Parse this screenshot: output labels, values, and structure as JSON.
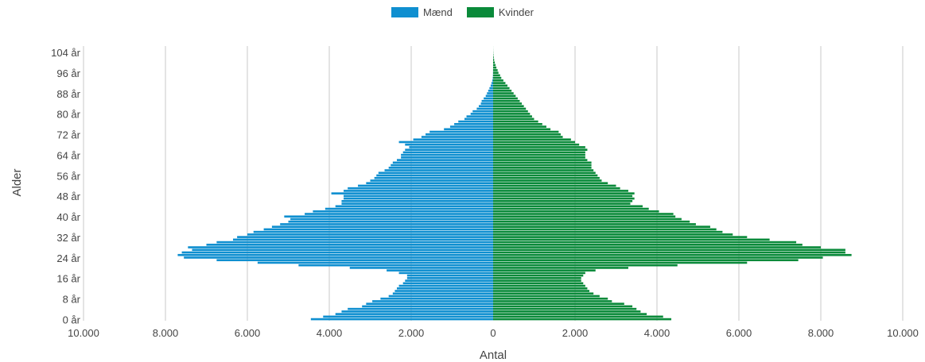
{
  "chart_data": {
    "type": "bar",
    "orientation": "horizontal-pyramid",
    "legend": {
      "position": "top",
      "entries": [
        "Mænd",
        "Kvinder"
      ]
    },
    "series": [
      {
        "name": "Mænd",
        "color": "#0f8fd0",
        "direction": "left"
      },
      {
        "name": "Kvinder",
        "color": "#0a8a3a",
        "direction": "right"
      }
    ],
    "xlabel": "Antal",
    "ylabel": "Alder",
    "xlim": [
      -10000,
      10000
    ],
    "x_ticks": [
      -10000,
      -8000,
      -6000,
      -4000,
      -2000,
      0,
      2000,
      4000,
      6000,
      8000,
      10000
    ],
    "x_tick_labels": [
      "10.000",
      "8.000",
      "6.000",
      "4.000",
      "2.000",
      "0",
      "2.000",
      "4.000",
      "6.000",
      "8.000",
      "10.000"
    ],
    "grid": true,
    "y_tick_labels": [
      {
        "age": 0,
        "label": "0 år"
      },
      {
        "age": 8,
        "label": "8 år"
      },
      {
        "age": 16,
        "label": "16 år"
      },
      {
        "age": 24,
        "label": "24 år"
      },
      {
        "age": 32,
        "label": "32 år"
      },
      {
        "age": 40,
        "label": "40 år"
      },
      {
        "age": 48,
        "label": "48 år"
      },
      {
        "age": 56,
        "label": "56 år"
      },
      {
        "age": 64,
        "label": "64 år"
      },
      {
        "age": 72,
        "label": "72 år"
      },
      {
        "age": 80,
        "label": "80 år"
      },
      {
        "age": 88,
        "label": "88 år"
      },
      {
        "age": 96,
        "label": "96 år"
      },
      {
        "age": 104,
        "label": "104 år"
      }
    ],
    "ages": [
      0,
      1,
      2,
      3,
      4,
      5,
      6,
      7,
      8,
      9,
      10,
      11,
      12,
      13,
      14,
      15,
      16,
      17,
      18,
      19,
      20,
      21,
      22,
      23,
      24,
      25,
      26,
      27,
      28,
      29,
      30,
      31,
      32,
      33,
      34,
      35,
      36,
      37,
      38,
      39,
      40,
      41,
      42,
      43,
      44,
      45,
      46,
      47,
      48,
      49,
      50,
      51,
      52,
      53,
      54,
      55,
      56,
      57,
      58,
      59,
      60,
      61,
      62,
      63,
      64,
      65,
      66,
      67,
      68,
      69,
      70,
      71,
      72,
      73,
      74,
      75,
      76,
      77,
      78,
      79,
      80,
      81,
      82,
      83,
      84,
      85,
      86,
      87,
      88,
      89,
      90,
      91,
      92,
      93,
      94,
      95,
      96,
      97,
      98,
      99,
      100,
      101,
      102,
      103,
      104,
      105,
      106
    ],
    "men": [
      4450,
      4150,
      3850,
      3700,
      3550,
      3200,
      3100,
      2950,
      2750,
      2550,
      2450,
      2400,
      2350,
      2300,
      2200,
      2150,
      2100,
      2100,
      2300,
      2600,
      3500,
      4750,
      5750,
      6750,
      7550,
      7700,
      7600,
      7350,
      7450,
      7000,
      6750,
      6350,
      6250,
      6000,
      5850,
      5600,
      5400,
      5200,
      5000,
      4950,
      5100,
      4600,
      4400,
      4100,
      3850,
      3700,
      3700,
      3650,
      3650,
      3950,
      3650,
      3550,
      3300,
      3100,
      3000,
      2900,
      2850,
      2800,
      2650,
      2550,
      2500,
      2450,
      2350,
      2250,
      2250,
      2200,
      2150,
      2050,
      2150,
      2300,
      1950,
      1750,
      1650,
      1550,
      1200,
      1050,
      950,
      850,
      700,
      650,
      550,
      500,
      400,
      350,
      300,
      280,
      230,
      180,
      150,
      120,
      90,
      60,
      40,
      20,
      10,
      5,
      3,
      2,
      1,
      1,
      0,
      0,
      0,
      0,
      0,
      0,
      0
    ],
    "women": [
      4350,
      4150,
      3750,
      3600,
      3500,
      3400,
      3200,
      2900,
      2800,
      2600,
      2450,
      2350,
      2300,
      2250,
      2200,
      2150,
      2150,
      2200,
      2250,
      2500,
      3300,
      4500,
      6200,
      7450,
      8050,
      8750,
      8600,
      8600,
      8000,
      7550,
      7400,
      6750,
      6200,
      5850,
      5600,
      5450,
      5300,
      4950,
      4800,
      4600,
      4450,
      4400,
      4050,
      3800,
      3650,
      3350,
      3400,
      3450,
      3400,
      3450,
      3300,
      3100,
      3000,
      2800,
      2650,
      2600,
      2550,
      2500,
      2450,
      2400,
      2400,
      2400,
      2300,
      2250,
      2250,
      2250,
      2300,
      2250,
      2100,
      2000,
      1900,
      1700,
      1650,
      1600,
      1400,
      1300,
      1200,
      1100,
      1000,
      950,
      900,
      850,
      800,
      750,
      700,
      650,
      600,
      550,
      500,
      450,
      400,
      350,
      300,
      250,
      200,
      170,
      130,
      110,
      80,
      60,
      40,
      25,
      15,
      8,
      4,
      2,
      1
    ]
  }
}
